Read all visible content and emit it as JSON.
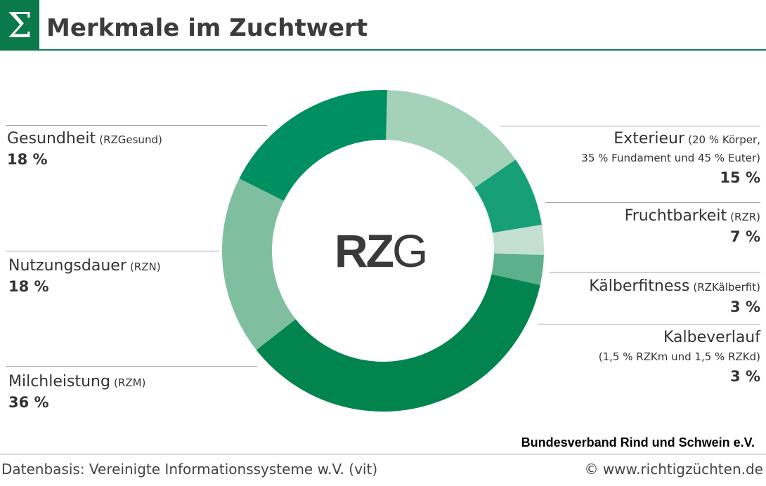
{
  "header": {
    "logo_symbol": "Σ",
    "title": "Merkmale im Zuchtwert"
  },
  "chart_data": {
    "type": "pie",
    "donut": true,
    "center_label_bold": "RZ",
    "center_label_thin": "G",
    "slices": [
      {
        "name": "Exterieur",
        "abbr": "",
        "desc1": "(20 % Körper,",
        "desc2": "35 % Fundament und 45 % Euter)",
        "value": 15,
        "value_label": "15 %",
        "color": "#a3d2b8"
      },
      {
        "name": "Fruchtbarkeit",
        "abbr": "(RZR)",
        "desc1": "",
        "desc2": "",
        "value": 7,
        "value_label": "7 %",
        "color": "#17a078"
      },
      {
        "name": "Kälberfitness",
        "abbr": "(RZKälberfit)",
        "desc1": "",
        "desc2": "",
        "value": 3,
        "value_label": "3 %",
        "color": "#c3e0d0"
      },
      {
        "name": "Kalbeverlauf",
        "abbr": "",
        "desc1": "(1,5 % RZKm und 1,5 % RZKd)",
        "desc2": "",
        "value": 3,
        "value_label": "3 %",
        "color": "#5cb08c"
      },
      {
        "name": "Milchleistung",
        "abbr": "(RZM)",
        "desc1": "",
        "desc2": "",
        "value": 36,
        "value_label": "36 %",
        "color": "#02844f"
      },
      {
        "name": "Nutzungsdauer",
        "abbr": "(RZN)",
        "desc1": "",
        "desc2": "",
        "value": 18,
        "value_label": "18 %",
        "color": "#7fbfa0"
      },
      {
        "name": "Gesundheit",
        "abbr": "(RZGesund)",
        "desc1": "",
        "desc2": "",
        "value": 18,
        "value_label": "18 %",
        "color": "#008f60"
      }
    ]
  },
  "footer": {
    "publisher": "Bundesverband Rind und Schwein e.V.",
    "source": "Datenbasis: Vereinigte Informationssysteme w.V. (vit)",
    "copyright": "© www.richtigzüchten.de"
  }
}
